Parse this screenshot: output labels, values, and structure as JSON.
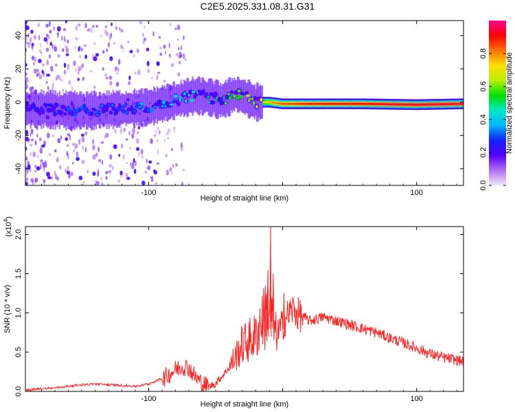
{
  "title": "C2E5.2025.331.08.31.G31",
  "chart_data": [
    {
      "type": "heatmap",
      "name": "spectrogram",
      "xlabel": "Height of straight line (km)",
      "ylabel": "Frequency (Hz)",
      "xlim": [
        -192,
        135
      ],
      "ylim": [
        -50,
        49
      ],
      "x_ticks": [
        -100,
        0,
        100
      ],
      "x_tick_labels": [
        "-100",
        "",
        "100"
      ],
      "y_ticks": [
        -40,
        -20,
        0,
        20,
        40
      ],
      "y_tick_labels": [
        "-40",
        "-20",
        "0",
        "20",
        "40"
      ],
      "ridge": {
        "x": [
          -185,
          -160,
          -140,
          -120,
          -100,
          -80,
          -65,
          -55,
          -45,
          -35,
          -28,
          -20,
          -10,
          0,
          20,
          60,
          100,
          135
        ],
        "freq": [
          -4,
          -5,
          -5,
          -4,
          -3,
          1,
          4,
          3,
          1,
          5,
          3,
          0,
          0,
          -1,
          -1,
          -1,
          -1.5,
          -1
        ]
      },
      "amplitude": {
        "x": [
          -192,
          -100,
          -60,
          -30,
          -20,
          -10,
          0,
          20,
          60,
          100,
          135
        ],
        "value": [
          0.25,
          0.3,
          0.45,
          0.55,
          0.6,
          0.75,
          0.85,
          0.9,
          0.92,
          0.95,
          0.95
        ]
      }
    },
    {
      "type": "colorbar",
      "name": "amplitude-colorbar",
      "label": "Normalized spectral amplitude",
      "range": [
        0,
        1
      ],
      "ticks": [
        0.0,
        0.2,
        0.4,
        0.6,
        0.8
      ],
      "tick_labels": [
        "0.0",
        "0.2",
        "0.4",
        "0.6",
        "0.8"
      ],
      "colors": [
        "#f2e6ff",
        "#b070f0",
        "#5a00ff",
        "#1020ff",
        "#00b4ff",
        "#00e6c8",
        "#00e000",
        "#b4f000",
        "#ffe000",
        "#ff7000",
        "#ff0000",
        "#ff0090"
      ]
    },
    {
      "type": "line",
      "name": "snr",
      "xlabel": "Height of straight line (km)",
      "ylabel": "SNR (10 * v/v)",
      "scale_label": "(x10",
      "scale_exponent": "4",
      "scale_close": ")",
      "xlim": [
        -192,
        135
      ],
      "ylim": [
        0,
        2.1
      ],
      "x_ticks": [
        -100,
        0,
        100
      ],
      "x_tick_labels": [
        "-100",
        "",
        "100"
      ],
      "y_ticks": [
        0.0,
        0.5,
        1.0,
        1.5,
        2.0
      ],
      "y_tick_labels": [
        "0.0",
        "0.5",
        "1.0",
        "1.5",
        "2.0"
      ],
      "color": "#ff2020",
      "x": [
        -192,
        -180,
        -170,
        -160,
        -150,
        -140,
        -130,
        -120,
        -110,
        -100,
        -90,
        -80,
        -75,
        -70,
        -65,
        -60,
        -55,
        -50,
        -45,
        -40,
        -35,
        -30,
        -25,
        -20,
        -17,
        -15,
        -13,
        -11,
        -9,
        -7,
        -5,
        -3,
        0,
        3,
        5,
        8,
        10,
        15,
        20,
        25,
        30,
        40,
        50,
        60,
        70,
        80,
        90,
        100,
        110,
        120,
        135
      ],
      "y": [
        0.0,
        0.02,
        0.03,
        0.05,
        0.07,
        0.08,
        0.07,
        0.06,
        0.05,
        0.08,
        0.15,
        0.28,
        0.32,
        0.3,
        0.18,
        0.1,
        0.06,
        0.1,
        0.2,
        0.3,
        0.45,
        0.6,
        0.65,
        0.7,
        0.85,
        0.95,
        0.9,
        1.1,
        1.0,
        0.9,
        0.7,
        0.75,
        0.85,
        0.95,
        1.0,
        1.05,
        1.0,
        0.95,
        0.9,
        0.92,
        0.95,
        0.9,
        0.85,
        0.8,
        0.75,
        0.68,
        0.62,
        0.55,
        0.48,
        0.43,
        0.38
      ],
      "peaks": [
        {
          "x": -13,
          "y": 1.35
        },
        {
          "x": -11,
          "y": 1.55
        },
        {
          "x": -9,
          "y": 2.1
        },
        {
          "x": -7,
          "y": 1.5
        },
        {
          "x": 1,
          "y": 1.25
        }
      ]
    }
  ]
}
